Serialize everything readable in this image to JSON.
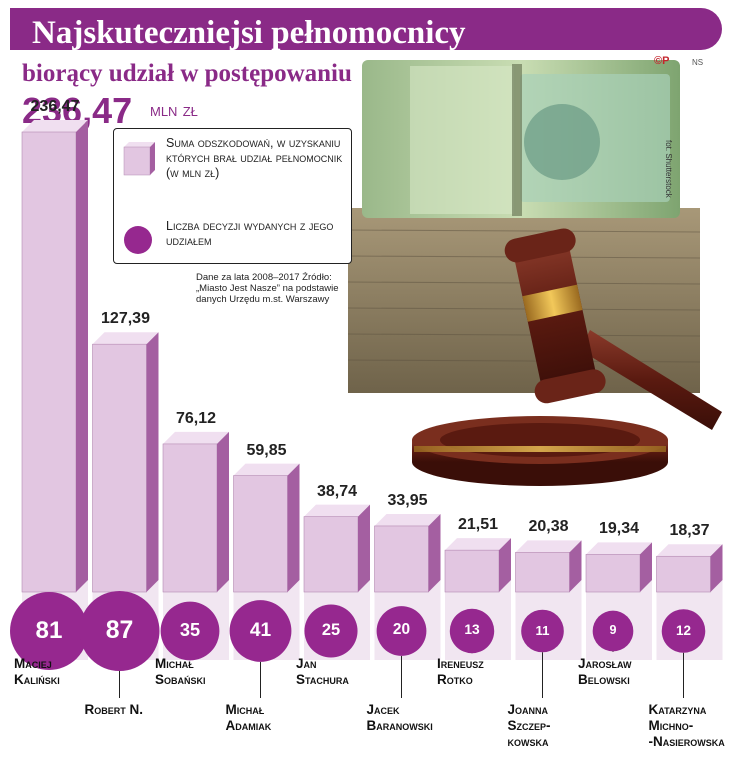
{
  "header": {
    "title": "Najskuteczniejsi pełnomocnicy",
    "subtitle": "biorący udział w postępowaniu",
    "total_value": "236,47",
    "total_unit": "mln zł",
    "logo": "©P",
    "initials": "NS",
    "photo_credit": "fot. Shutterstock"
  },
  "legend": {
    "bar_text": "Suma odszkodowań, w uzyskaniu których brał udział pełnomocnik (w mln zł)",
    "circle_text": "Liczba decyzji wydanych z jego udziałem"
  },
  "source": "Dane za lata 2008–2017 Źródło: „Miasto Jest Nasze” na podstawie danych Urzędu m.st. Warszawy",
  "colors": {
    "accent": "#8a2a87",
    "bar_front": "#e2c6e1",
    "bar_side": "#a45fa1",
    "circle": "#96288f"
  },
  "chart_data": {
    "type": "bar",
    "categories": [
      "Maciej Kaliński",
      "Robert N.",
      "Michał Sobański",
      "Michał Adamiak",
      "Jan Stachura",
      "Jacek Baranowski",
      "Ireneusz Rotko",
      "Joanna Szczepkowska",
      "Jarosław Belowski",
      "Katarzyna Michno-Nasierowska"
    ],
    "name_lines": [
      [
        "Maciej",
        "Kaliński"
      ],
      [
        "Robert N."
      ],
      [
        "Michał",
        "Sobański"
      ],
      [
        "Michał",
        "Adamiak"
      ],
      [
        "Jan",
        "Stachura"
      ],
      [
        "Jacek",
        "Baranowski"
      ],
      [
        "Ireneusz",
        "Rotko"
      ],
      [
        "Joanna",
        "Szczep-",
        "kowska"
      ],
      [
        "Jarosław",
        "Belowski"
      ],
      [
        "Katarzyna",
        "Michno-",
        "-Nasierowska"
      ]
    ],
    "series": [
      {
        "values": [
          236.47,
          127.39,
          76.12,
          59.85,
          38.74,
          33.95,
          21.51,
          20.38,
          19.34,
          18.37
        ],
        "labels": [
          "236,47",
          "127,39",
          "76,12",
          "59,85",
          "38,74",
          "33,95",
          "21,51",
          "20,38",
          "19,34",
          "18,37"
        ]
      },
      {
        "values": [
          81,
          87,
          35,
          41,
          25,
          20,
          13,
          11,
          9,
          12
        ]
      }
    ]
  }
}
